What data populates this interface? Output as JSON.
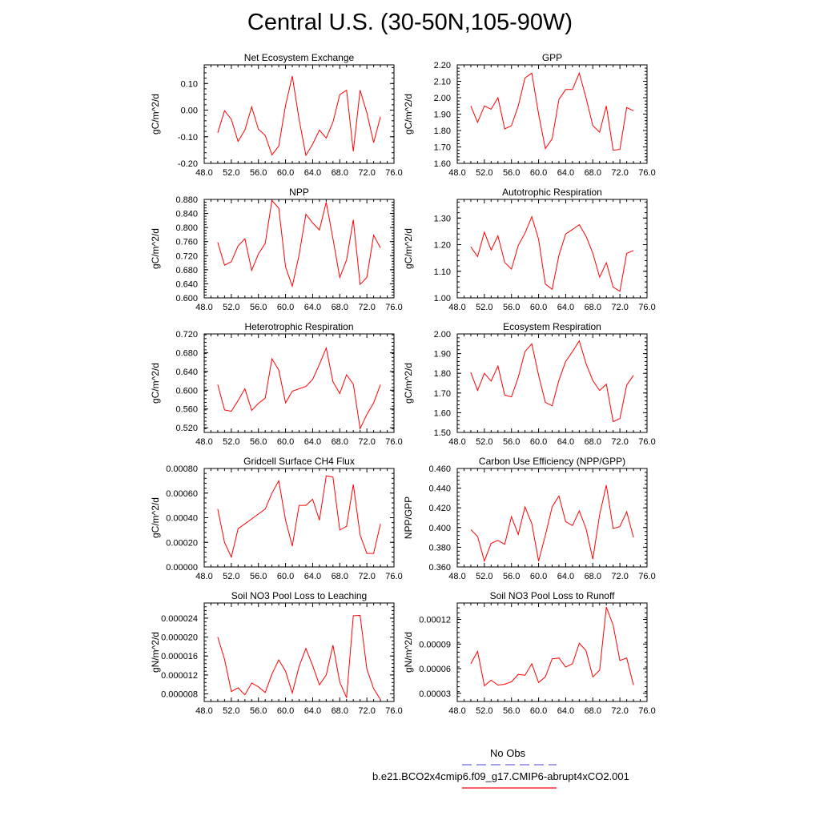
{
  "title": "Central U.S. (30-50N,105-90W)",
  "colors": {
    "model_line": "#ff0000",
    "obs_line": "#6a6ad8"
  },
  "legend": {
    "obs_label": "No Obs",
    "model_label": "b.e21.BCO2x4cmip6.f09_g17.CMIP6-abrupt4xCO2.001"
  },
  "chart_data": [
    {
      "type": "line",
      "title": "Net Ecosystem Exchange",
      "ylabel": "gC/m^2/d",
      "xlabel": "",
      "xlim": [
        48,
        76
      ],
      "ylim": [
        -0.2,
        0.17
      ],
      "xticks": [
        "48.0",
        "52.0",
        "56.0",
        "60.0",
        "64.0",
        "68.0",
        "72.0",
        "76.0"
      ],
      "yticks": [
        "-0.20",
        "-0.10",
        "0.00",
        "0.10"
      ],
      "x": [
        50,
        51,
        52,
        53,
        54,
        55,
        56,
        57,
        58,
        59,
        60,
        61,
        62,
        63,
        64,
        65,
        66,
        67,
        68,
        69,
        70,
        71,
        72,
        73,
        74
      ],
      "series": [
        {
          "values": [
            -0.085,
            -0.002,
            -0.035,
            -0.118,
            -0.075,
            0.012,
            -0.072,
            -0.095,
            -0.168,
            -0.135,
            0.018,
            0.128,
            -0.035,
            -0.17,
            -0.128,
            -0.075,
            -0.105,
            -0.045,
            0.058,
            0.075,
            -0.155,
            0.075,
            -0.01,
            -0.122,
            -0.025
          ]
        }
      ]
    },
    {
      "type": "line",
      "title": "GPP",
      "ylabel": "gC/m^2/d",
      "xlabel": "",
      "xlim": [
        48,
        76
      ],
      "ylim": [
        1.6,
        2.2
      ],
      "xticks": [
        "48.0",
        "52.0",
        "56.0",
        "60.0",
        "64.0",
        "68.0",
        "72.0",
        "76.0"
      ],
      "yticks": [
        "1.60",
        "1.70",
        "1.80",
        "1.90",
        "2.00",
        "2.10",
        "2.20"
      ],
      "x": [
        50,
        51,
        52,
        53,
        54,
        55,
        56,
        57,
        58,
        59,
        60,
        61,
        62,
        63,
        64,
        65,
        66,
        67,
        68,
        69,
        70,
        71,
        72,
        73,
        74
      ],
      "series": [
        {
          "values": [
            1.95,
            1.85,
            1.95,
            1.93,
            2.0,
            1.81,
            1.83,
            1.95,
            2.12,
            2.15,
            1.9,
            1.69,
            1.75,
            1.99,
            2.05,
            2.05,
            2.15,
            2.0,
            1.83,
            1.79,
            1.95,
            1.68,
            1.685,
            1.94,
            1.92
          ]
        }
      ]
    },
    {
      "type": "line",
      "title": "NPP",
      "ylabel": "gC/m^2/d",
      "xlabel": "",
      "xlim": [
        48,
        76
      ],
      "ylim": [
        0.6,
        0.88
      ],
      "xticks": [
        "48.0",
        "52.0",
        "56.0",
        "60.0",
        "64.0",
        "68.0",
        "72.0",
        "76.0"
      ],
      "yticks": [
        "0.600",
        "0.640",
        "0.680",
        "0.720",
        "0.760",
        "0.800",
        "0.840",
        "0.880"
      ],
      "x": [
        50,
        51,
        52,
        53,
        54,
        55,
        56,
        57,
        58,
        59,
        60,
        61,
        62,
        63,
        64,
        65,
        66,
        67,
        68,
        69,
        70,
        71,
        72,
        73,
        74
      ],
      "series": [
        {
          "values": [
            0.758,
            0.693,
            0.703,
            0.748,
            0.768,
            0.678,
            0.725,
            0.755,
            0.877,
            0.855,
            0.688,
            0.633,
            0.722,
            0.838,
            0.813,
            0.793,
            0.872,
            0.768,
            0.658,
            0.708,
            0.822,
            0.638,
            0.658,
            0.778,
            0.742
          ]
        }
      ]
    },
    {
      "type": "line",
      "title": "Autotrophic Respiration",
      "ylabel": "gC/m^2/d",
      "xlabel": "",
      "xlim": [
        48,
        76
      ],
      "ylim": [
        1.0,
        1.37
      ],
      "xticks": [
        "48.0",
        "52.0",
        "56.0",
        "60.0",
        "64.0",
        "68.0",
        "72.0",
        "76.0"
      ],
      "yticks": [
        "1.00",
        "1.10",
        "1.20",
        "1.30"
      ],
      "x": [
        50,
        51,
        52,
        53,
        54,
        55,
        56,
        57,
        58,
        59,
        60,
        61,
        62,
        63,
        64,
        65,
        66,
        67,
        68,
        69,
        70,
        71,
        72,
        73,
        74
      ],
      "series": [
        {
          "values": [
            1.192,
            1.155,
            1.247,
            1.18,
            1.233,
            1.133,
            1.108,
            1.197,
            1.243,
            1.305,
            1.22,
            1.052,
            1.032,
            1.16,
            1.24,
            1.257,
            1.275,
            1.232,
            1.168,
            1.078,
            1.132,
            1.04,
            1.025,
            1.167,
            1.178
          ]
        }
      ]
    },
    {
      "type": "line",
      "title": "Heterotrophic Respiration",
      "ylabel": "gC/m^2/d",
      "xlabel": "",
      "xlim": [
        48,
        76
      ],
      "ylim": [
        0.51,
        0.72
      ],
      "xticks": [
        "48.0",
        "52.0",
        "56.0",
        "60.0",
        "64.0",
        "68.0",
        "72.0",
        "76.0"
      ],
      "yticks": [
        "0.520",
        "0.560",
        "0.600",
        "0.640",
        "0.680",
        "0.720"
      ],
      "x": [
        50,
        51,
        52,
        53,
        54,
        55,
        56,
        57,
        58,
        59,
        60,
        61,
        62,
        63,
        64,
        65,
        66,
        67,
        68,
        69,
        70,
        71,
        72,
        73,
        74
      ],
      "series": [
        {
          "values": [
            0.612,
            0.558,
            0.555,
            0.578,
            0.603,
            0.557,
            0.572,
            0.583,
            0.667,
            0.643,
            0.573,
            0.598,
            0.603,
            0.608,
            0.623,
            0.655,
            0.69,
            0.618,
            0.593,
            0.633,
            0.613,
            0.518,
            0.548,
            0.573,
            0.612
          ]
        }
      ]
    },
    {
      "type": "line",
      "title": "Ecosystem Respiration",
      "ylabel": "gC/m^2/d",
      "xlabel": "",
      "xlim": [
        48,
        76
      ],
      "ylim": [
        1.5,
        2.0
      ],
      "xticks": [
        "48.0",
        "52.0",
        "56.0",
        "60.0",
        "64.0",
        "68.0",
        "72.0",
        "76.0"
      ],
      "yticks": [
        "1.50",
        "1.60",
        "1.70",
        "1.80",
        "1.90",
        "2.00"
      ],
      "x": [
        50,
        51,
        52,
        53,
        54,
        55,
        56,
        57,
        58,
        59,
        60,
        61,
        62,
        63,
        64,
        65,
        66,
        67,
        68,
        69,
        70,
        71,
        72,
        73,
        74
      ],
      "series": [
        {
          "values": [
            1.805,
            1.713,
            1.8,
            1.76,
            1.837,
            1.69,
            1.68,
            1.78,
            1.91,
            1.95,
            1.79,
            1.653,
            1.635,
            1.765,
            1.86,
            1.91,
            1.965,
            1.85,
            1.763,
            1.713,
            1.745,
            1.555,
            1.57,
            1.74,
            1.79
          ]
        }
      ]
    },
    {
      "type": "line",
      "title": "Gridcell Surface CH4 Flux",
      "ylabel": "gC/m^2/d",
      "xlabel": "",
      "xlim": [
        48,
        76
      ],
      "ylim": [
        0,
        0.0008
      ],
      "xticks": [
        "48.0",
        "52.0",
        "56.0",
        "60.0",
        "64.0",
        "68.0",
        "72.0",
        "76.0"
      ],
      "yticks": [
        "0.00000",
        "0.00020",
        "0.00040",
        "0.00060",
        "0.00080"
      ],
      "x": [
        50,
        51,
        52,
        53,
        54,
        55,
        56,
        57,
        58,
        59,
        60,
        61,
        62,
        63,
        64,
        65,
        66,
        67,
        68,
        69,
        70,
        71,
        72,
        73,
        74
      ],
      "series": [
        {
          "values": [
            0.00047,
            0.0002,
            8e-05,
            0.00031,
            0.00035,
            0.00039,
            0.00043,
            0.00047,
            0.0006,
            0.0007,
            0.00038,
            0.00017,
            0.0005,
            0.0005,
            0.00055,
            0.00038,
            0.00074,
            0.00073,
            0.0003,
            0.00033,
            0.00067,
            0.00026,
            0.00011,
            0.00011,
            0.00035
          ]
        }
      ]
    },
    {
      "type": "line",
      "title": "Carbon Use Efficiency (NPP/GPP)",
      "ylabel": "NPP/GPP",
      "xlabel": "",
      "xlim": [
        48,
        76
      ],
      "ylim": [
        0.36,
        0.46
      ],
      "xticks": [
        "48.0",
        "52.0",
        "56.0",
        "60.0",
        "64.0",
        "68.0",
        "72.0",
        "76.0"
      ],
      "yticks": [
        "0.360",
        "0.380",
        "0.400",
        "0.420",
        "0.440",
        "0.460"
      ],
      "x": [
        50,
        51,
        52,
        53,
        54,
        55,
        56,
        57,
        58,
        59,
        60,
        61,
        62,
        63,
        64,
        65,
        66,
        67,
        68,
        69,
        70,
        71,
        72,
        73,
        74
      ],
      "series": [
        {
          "values": [
            0.398,
            0.391,
            0.366,
            0.384,
            0.387,
            0.383,
            0.411,
            0.393,
            0.421,
            0.404,
            0.366,
            0.392,
            0.421,
            0.432,
            0.406,
            0.402,
            0.417,
            0.399,
            0.368,
            0.413,
            0.443,
            0.399,
            0.401,
            0.416,
            0.39
          ]
        }
      ]
    },
    {
      "type": "line",
      "title": "Soil NO3 Pool Loss to Leaching",
      "ylabel": "gN/m^2/d",
      "xlabel": "",
      "xlim": [
        48,
        76
      ],
      "ylim": [
        6.4e-06,
        2.72e-05
      ],
      "xticks": [
        "48.0",
        "52.0",
        "56.0",
        "60.0",
        "64.0",
        "68.0",
        "72.0",
        "76.0"
      ],
      "yticks": [
        "0.000008",
        "0.000012",
        "0.000016",
        "0.000020",
        "0.000024"
      ],
      "x": [
        50,
        51,
        52,
        53,
        54,
        55,
        56,
        57,
        58,
        59,
        60,
        61,
        62,
        63,
        64,
        65,
        66,
        67,
        68,
        69,
        70,
        71,
        72,
        73,
        74
      ],
      "series": [
        {
          "values": [
            2e-05,
            1.53e-05,
            8.5e-06,
            9.3e-06,
            7.8e-06,
            1.03e-05,
            9.5e-06,
            8.3e-06,
            1.22e-05,
            1.52e-05,
            1.28e-05,
            8.2e-06,
            1.38e-05,
            1.76e-05,
            1.4e-05,
            9.9e-06,
            1.2e-05,
            1.83e-05,
            1.05e-05,
            7.2e-06,
            2.45e-05,
            2.46e-05,
            1.33e-05,
            9.1e-06,
            6.8e-06
          ]
        }
      ]
    },
    {
      "type": "line",
      "title": "Soil NO3 Pool Loss to Runoff",
      "ylabel": "gN/m^2/d",
      "xlabel": "",
      "xlim": [
        48,
        76
      ],
      "ylim": [
        2e-05,
        0.00014
      ],
      "xticks": [
        "48.0",
        "52.0",
        "56.0",
        "60.0",
        "64.0",
        "68.0",
        "72.0",
        "76.0"
      ],
      "yticks": [
        "0.00003",
        "0.00006",
        "0.00009",
        "0.00012"
      ],
      "x": [
        50,
        51,
        52,
        53,
        54,
        55,
        56,
        57,
        58,
        59,
        60,
        61,
        62,
        63,
        64,
        65,
        66,
        67,
        68,
        69,
        70,
        71,
        72,
        73,
        74
      ],
      "series": [
        {
          "values": [
            6.6e-05,
            8.1e-05,
            3.9e-05,
            4.6e-05,
            4e-05,
            4.1e-05,
            4.4e-05,
            5.3e-05,
            5.2e-05,
            6.6e-05,
            4.3e-05,
            5e-05,
            7.2e-05,
            7.3e-05,
            6.2e-05,
            6.6e-05,
            9.1e-05,
            8.2e-05,
            5e-05,
            5.8e-05,
            0.000135,
            0.000113,
            7e-05,
            7.3e-05,
            4e-05
          ]
        }
      ]
    }
  ]
}
